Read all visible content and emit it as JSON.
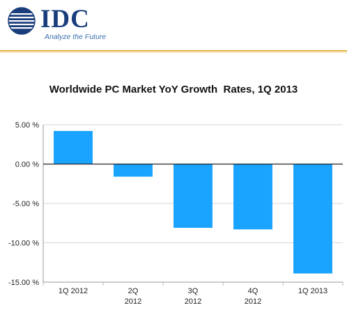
{
  "brand": {
    "name": "IDC",
    "tagline": "Analyze the Future",
    "colors": {
      "primary": "#1a3e7c",
      "accent": "#e0b040",
      "bar": "#1aa3ff"
    }
  },
  "chart_data": {
    "type": "bar",
    "title": "Worldwide PC Market YoY Growth  Rates, 1Q 2013",
    "categories": [
      "1Q 2012",
      "2Q 2012",
      "3Q 2012",
      "4Q 2012",
      "1Q 2013"
    ],
    "category_labels": [
      [
        "1Q 2012"
      ],
      [
        "2Q",
        "2012"
      ],
      [
        "3Q",
        "2012"
      ],
      [
        "4Q",
        "2012"
      ],
      [
        "1Q 2013"
      ]
    ],
    "values": [
      4.2,
      -1.6,
      -8.1,
      -8.3,
      -13.9
    ],
    "ylim": [
      -15,
      5
    ],
    "yticks": [
      5,
      0,
      -5,
      -10,
      -15
    ],
    "ytick_labels": [
      "5.00 %",
      "0.00 %",
      "-5.00 %",
      "-10.00 %",
      "-15.00 %"
    ],
    "grid": true,
    "legend": "none"
  }
}
